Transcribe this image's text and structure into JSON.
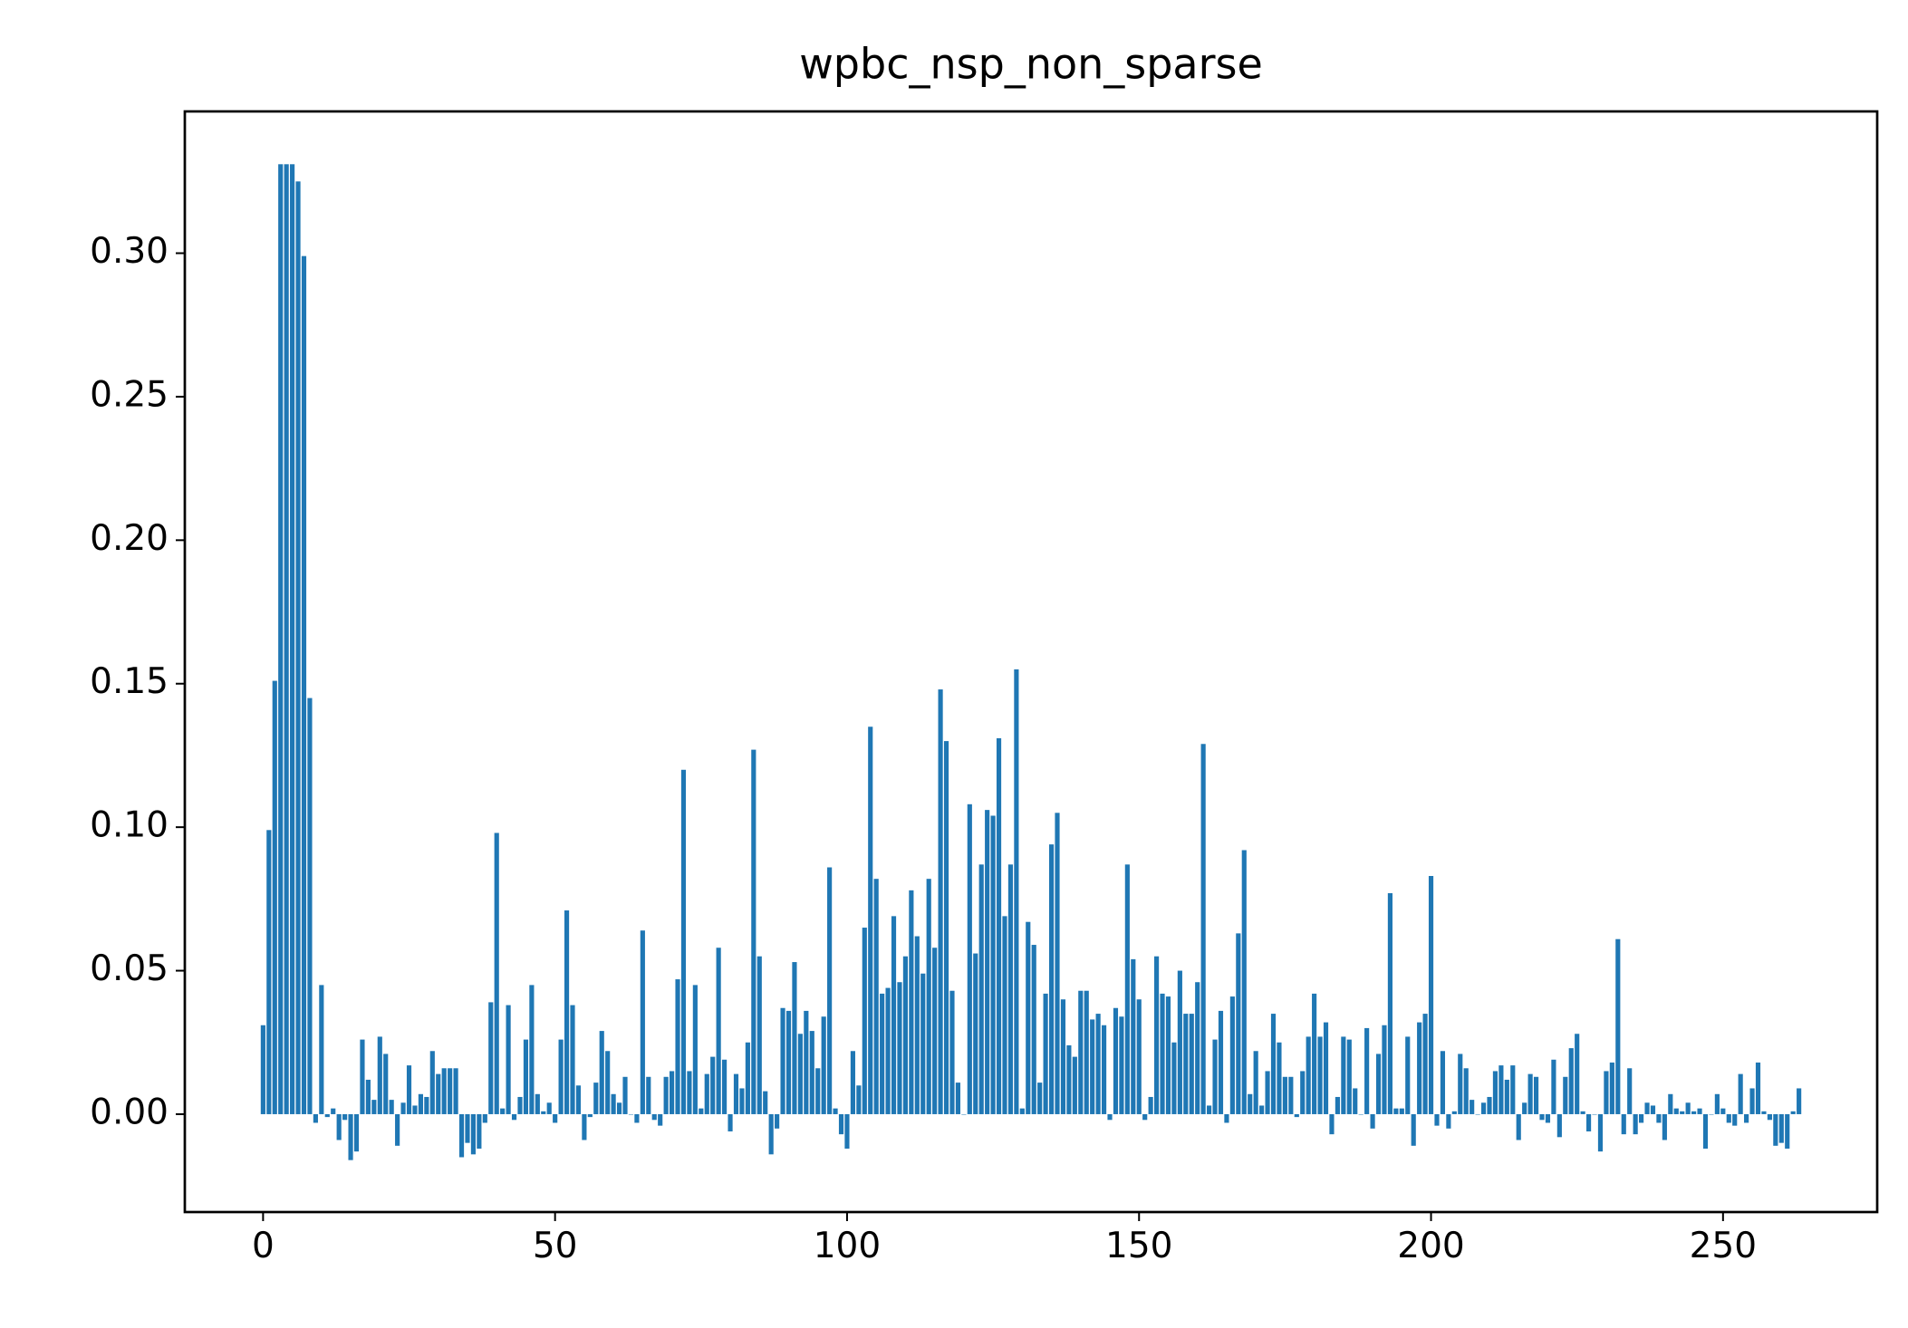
{
  "chart_data": {
    "type": "bar",
    "title": "wpbc_nsp_non_sparse",
    "color": "#1f77b4",
    "bar_width": 0.8,
    "x": [
      0,
      1,
      2,
      3,
      4,
      5,
      6,
      7,
      8,
      9,
      10,
      11,
      12,
      13,
      14,
      15,
      16,
      17,
      18,
      19,
      20,
      21,
      22,
      23,
      24,
      25,
      26,
      27,
      28,
      29,
      30,
      31,
      32,
      33,
      34,
      35,
      36,
      37,
      38,
      39,
      40,
      41,
      42,
      43,
      44,
      45,
      46,
      47,
      48,
      49,
      50,
      51,
      52,
      53,
      54,
      55,
      56,
      57,
      58,
      59,
      60,
      61,
      62,
      63,
      64,
      65,
      66,
      67,
      68,
      69,
      70,
      71,
      72,
      73,
      74,
      75,
      76,
      77,
      78,
      79,
      80,
      81,
      82,
      83,
      84,
      85,
      86,
      87,
      88,
      89,
      90,
      91,
      92,
      93,
      94,
      95,
      96,
      97,
      98,
      99,
      100,
      101,
      102,
      103,
      104,
      105,
      106,
      107,
      108,
      109,
      110,
      111,
      112,
      113,
      114,
      115,
      116,
      117,
      118,
      119,
      120,
      121,
      122,
      123,
      124,
      125,
      126,
      127,
      128,
      129,
      130,
      131,
      132,
      133,
      134,
      135,
      136,
      137,
      138,
      139,
      140,
      141,
      142,
      143,
      144,
      145,
      146,
      147,
      148,
      149,
      150,
      151,
      152,
      153,
      154,
      155,
      156,
      157,
      158,
      159,
      160,
      161,
      162,
      163,
      164,
      165,
      166,
      167,
      168,
      169,
      170,
      171,
      172,
      173,
      174,
      175,
      176,
      177,
      178,
      179,
      180,
      181,
      182,
      183,
      184,
      185,
      186,
      187,
      188,
      189,
      190,
      191,
      192,
      193,
      194,
      195,
      196,
      197,
      198,
      199,
      200,
      201,
      202,
      203,
      204,
      205,
      206,
      207,
      208,
      209,
      210,
      211,
      212,
      213,
      214,
      215,
      216,
      217,
      218,
      219,
      220,
      221,
      222,
      223,
      224,
      225,
      226,
      227,
      228,
      229,
      230,
      231,
      232,
      233,
      234,
      235,
      236,
      237,
      238,
      239,
      240,
      241,
      242,
      243,
      244,
      245,
      246,
      247,
      248,
      249,
      250,
      251,
      252,
      253,
      254,
      255,
      256,
      257,
      258,
      259,
      260,
      261,
      262,
      263
    ],
    "values": [
      0.031,
      0.099,
      0.151,
      0.331,
      0.331,
      0.331,
      0.325,
      0.299,
      0.145,
      -0.003,
      0.045,
      -0.001,
      0.002,
      -0.009,
      -0.002,
      -0.016,
      -0.013,
      0.026,
      0.012,
      0.005,
      0.027,
      0.021,
      0.005,
      -0.011,
      0.004,
      0.017,
      0.003,
      0.007,
      0.006,
      0.022,
      0.014,
      0.016,
      0.016,
      0.016,
      -0.015,
      -0.01,
      -0.014,
      -0.012,
      -0.003,
      0.039,
      0.098,
      0.002,
      0.038,
      -0.002,
      0.006,
      0.026,
      0.045,
      0.007,
      0.001,
      0.004,
      -0.003,
      0.026,
      0.071,
      0.038,
      0.01,
      -0.009,
      -0.001,
      0.011,
      0.029,
      0.022,
      0.007,
      0.004,
      0.013,
      0.0,
      -0.003,
      0.064,
      0.013,
      -0.002,
      -0.004,
      0.013,
      0.015,
      0.047,
      0.12,
      0.015,
      0.045,
      0.002,
      0.014,
      0.02,
      0.058,
      0.019,
      -0.006,
      0.014,
      0.009,
      0.025,
      0.127,
      0.055,
      0.008,
      -0.014,
      -0.005,
      0.037,
      0.036,
      0.053,
      0.028,
      0.036,
      0.029,
      0.016,
      0.034,
      0.086,
      0.002,
      -0.007,
      -0.012,
      0.022,
      0.01,
      0.065,
      0.135,
      0.082,
      0.042,
      0.044,
      0.069,
      0.046,
      0.055,
      0.078,
      0.062,
      0.049,
      0.082,
      0.058,
      0.148,
      0.13,
      0.043,
      0.011,
      0.0,
      0.108,
      0.056,
      0.087,
      0.106,
      0.104,
      0.131,
      0.069,
      0.087,
      0.155,
      0.002,
      0.067,
      0.059,
      0.011,
      0.042,
      0.094,
      0.105,
      0.04,
      0.024,
      0.02,
      0.043,
      0.043,
      0.033,
      0.035,
      0.031,
      -0.002,
      0.037,
      0.034,
      0.087,
      0.054,
      0.04,
      -0.002,
      0.006,
      0.055,
      0.042,
      0.041,
      0.025,
      0.05,
      0.035,
      0.035,
      0.046,
      0.129,
      0.003,
      0.026,
      0.036,
      -0.003,
      0.041,
      0.063,
      0.092,
      0.007,
      0.022,
      0.003,
      0.015,
      0.035,
      0.025,
      0.013,
      0.013,
      -0.001,
      0.015,
      0.027,
      0.042,
      0.027,
      0.032,
      -0.007,
      0.006,
      0.027,
      0.026,
      0.009,
      0.0,
      0.03,
      -0.005,
      0.021,
      0.031,
      0.077,
      0.002,
      0.002,
      0.027,
      -0.011,
      0.032,
      0.035,
      0.083,
      -0.004,
      0.022,
      -0.005,
      0.001,
      0.021,
      0.016,
      0.005,
      0.0,
      0.004,
      0.006,
      0.015,
      0.017,
      0.012,
      0.017,
      -0.009,
      0.004,
      0.014,
      0.013,
      -0.002,
      -0.003,
      0.019,
      -0.008,
      0.013,
      0.023,
      0.028,
      0.001,
      -0.006,
      0.0,
      -0.013,
      0.015,
      0.018,
      0.061,
      -0.007,
      0.016,
      -0.007,
      -0.003,
      0.004,
      0.003,
      -0.003,
      -0.009,
      0.007,
      0.002,
      0.001,
      0.004,
      0.001,
      0.002,
      -0.012,
      0.0,
      0.007,
      0.002,
      -0.003,
      -0.004,
      0.014,
      -0.003,
      0.009,
      0.018,
      0.001,
      -0.002,
      -0.011,
      -0.01,
      -0.012,
      0.001,
      0.009
    ],
    "xlim": [
      -13.4,
      276.4
    ],
    "ylim": [
      -0.0341,
      0.3494
    ],
    "xticks": [
      0,
      50,
      100,
      150,
      200,
      250
    ],
    "yticks": [
      {
        "value": 0,
        "label": "0.00"
      },
      {
        "value": 0.05,
        "label": "0.05"
      },
      {
        "value": 0.1,
        "label": "0.10"
      },
      {
        "value": 0.15,
        "label": "0.15"
      },
      {
        "value": 0.2,
        "label": "0.20"
      },
      {
        "value": 0.25,
        "label": "0.25"
      },
      {
        "value": 0.3,
        "label": "0.30"
      }
    ]
  }
}
